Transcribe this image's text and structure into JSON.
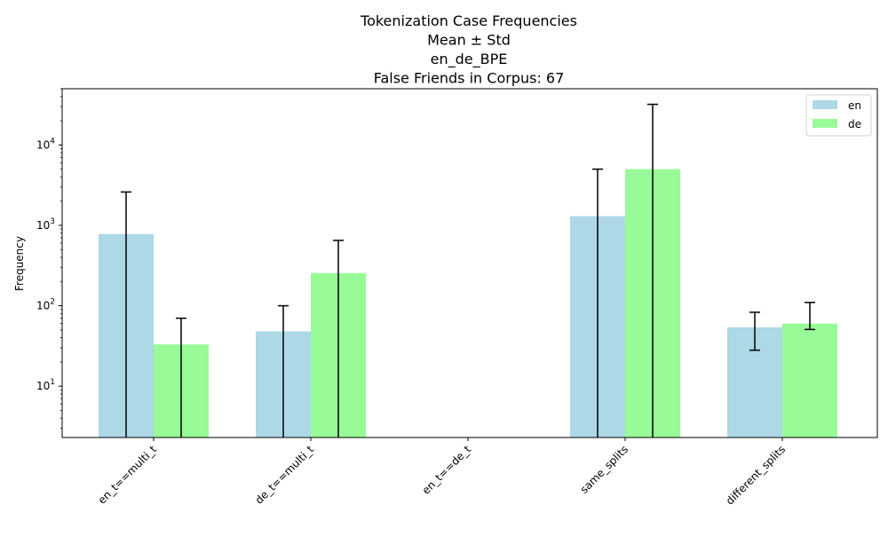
{
  "chart_data": {
    "type": "bar",
    "title_lines": [
      "Tokenization Case Frequencies",
      "Mean ± Std",
      "en_de_BPE",
      "False Friends in Corpus: 67"
    ],
    "xlabel": "",
    "ylabel": "Frequency",
    "yscale": "log",
    "ylim": [
      2.3,
      50000
    ],
    "yticks": [
      {
        "value": 10,
        "label_base": "10",
        "label_exp": "1"
      },
      {
        "value": 100,
        "label_base": "10",
        "label_exp": "2"
      },
      {
        "value": 1000,
        "label_base": "10",
        "label_exp": "3"
      },
      {
        "value": 10000,
        "label_base": "10",
        "label_exp": "4"
      }
    ],
    "categories": [
      "en_t==multi_t",
      "de_t==multi_t",
      "en_t==de_t",
      "same_splits",
      "different_splits"
    ],
    "series": [
      {
        "name": "en",
        "color": "#add8e6",
        "values": [
          780,
          48,
          0,
          1300,
          54
        ],
        "err_lower": [
          780,
          48,
          0,
          1300,
          26
        ],
        "err_upper": [
          2600,
          100,
          0,
          5000,
          83
        ]
      },
      {
        "name": "de",
        "color": "#98fb98",
        "values": [
          33,
          255,
          0,
          5000,
          60
        ],
        "err_lower": [
          33,
          255,
          0,
          5000,
          9.3
        ],
        "err_upper": [
          70,
          650,
          0,
          32000,
          110
        ]
      }
    ],
    "legend_position": "top-right",
    "grid": false
  }
}
